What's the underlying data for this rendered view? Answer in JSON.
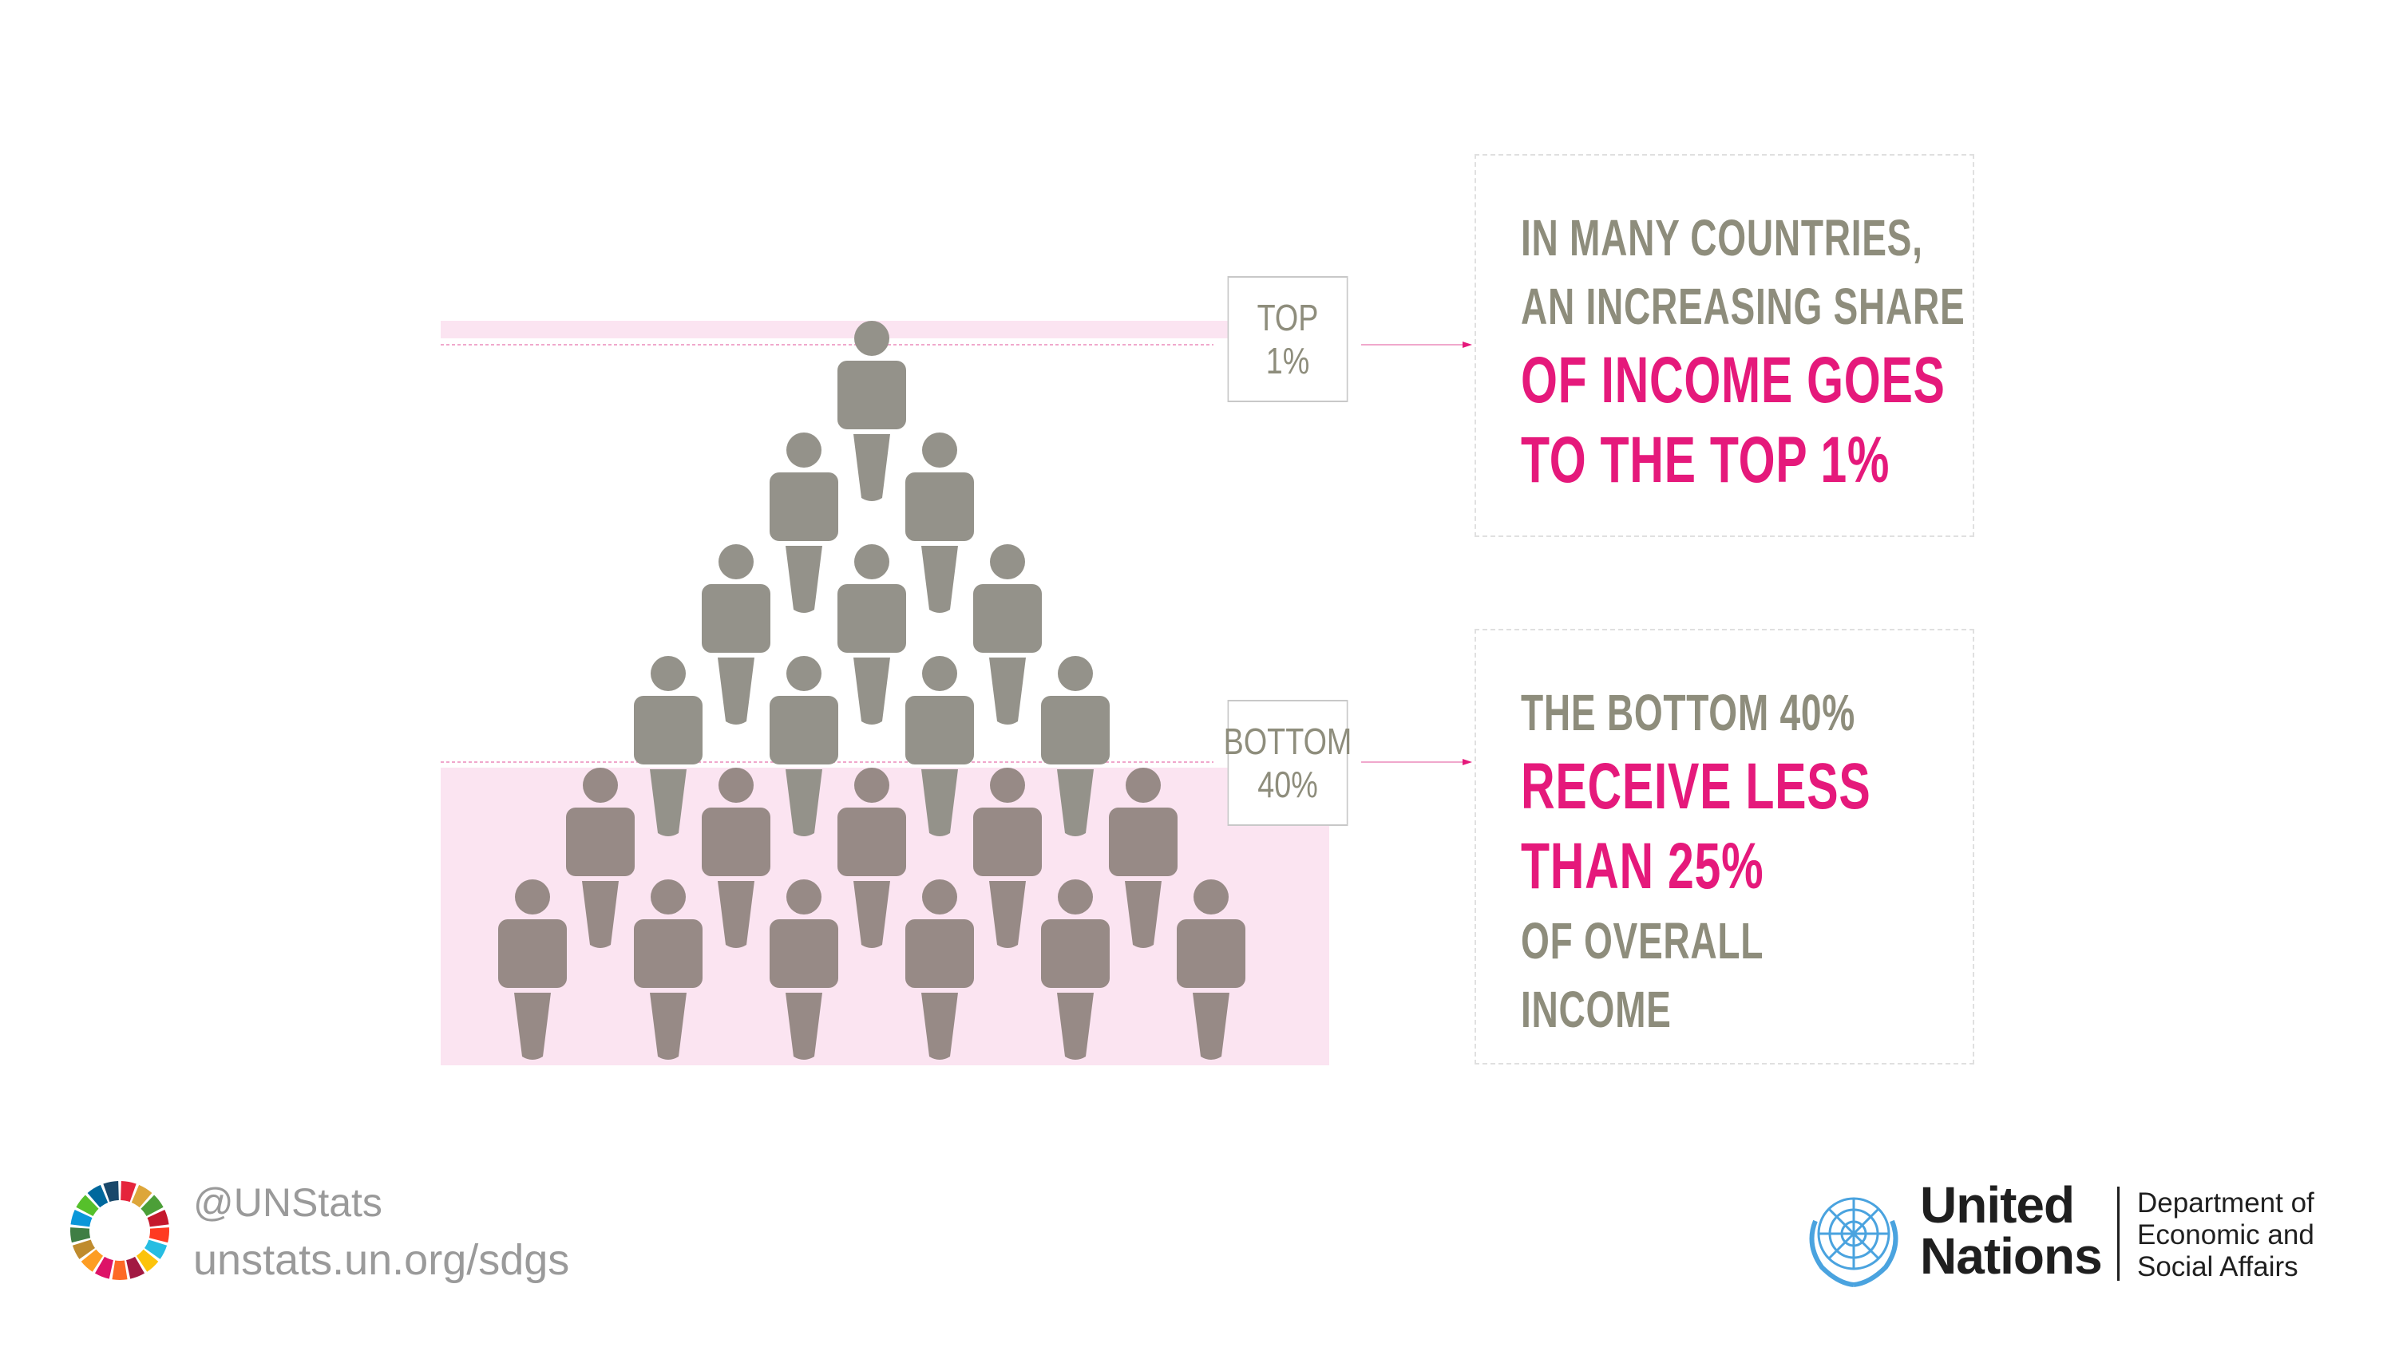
{
  "labels": {
    "top_line1": "TOP",
    "top_line2": "1%",
    "bottom_line1": "BOTTOM",
    "bottom_line2": "40%"
  },
  "message_top": {
    "line1": "IN MANY COUNTRIES,",
    "line2": "AN INCREASING SHARE",
    "line3": "OF INCOME GOES",
    "line4": "TO THE TOP 1%"
  },
  "message_bottom": {
    "line1": "THE BOTTOM 40%",
    "line2": "RECEIVE LESS",
    "line3": "THAN 25%",
    "line4": "OF OVERALL",
    "line5": "INCOME"
  },
  "footer": {
    "handle": "@UNStats",
    "url": "unstats.un.org/sdgs"
  },
  "un_logo": {
    "name_line1": "United",
    "name_line2": "Nations",
    "dept_line1": "Department of",
    "dept_line2": "Economic and",
    "dept_line3": "Social Affairs"
  },
  "pyramid": {
    "rows": [
      1,
      2,
      3,
      4,
      5,
      6
    ],
    "top_group_size": 1,
    "bottom_group_rows": 2
  },
  "colors": {
    "person_upper": "#94928a",
    "person_lower": "#978a86",
    "highlight": "#fbe4f1",
    "accent_pink": "#e5197b",
    "text_gray": "#8e8d7c",
    "un_blue": "#4aa3df"
  },
  "sdg_colors": [
    "#e5243b",
    "#dda63a",
    "#4c9f38",
    "#c5192d",
    "#ff3a21",
    "#26bde2",
    "#fcc30b",
    "#a21942",
    "#fd6925",
    "#dd1367",
    "#fd9d24",
    "#bf8b2e",
    "#3f7e44",
    "#0a97d9",
    "#56c02b",
    "#00689d",
    "#19486a"
  ]
}
